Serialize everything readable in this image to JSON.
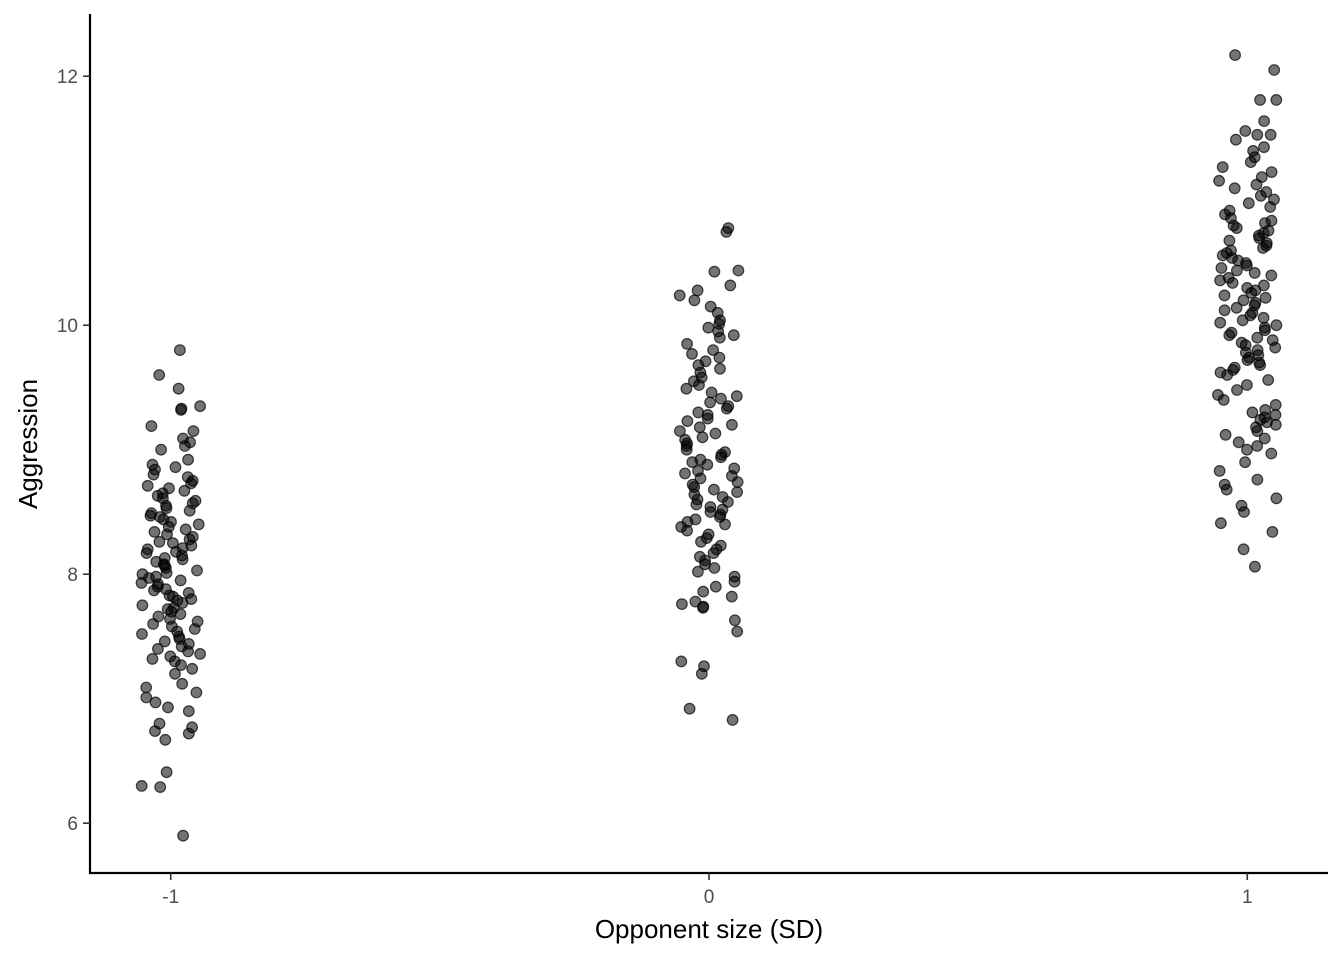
{
  "chart_data": {
    "type": "scatter",
    "title": "",
    "xlabel": "Opponent size (SD)",
    "ylabel": "Aggression",
    "xlim": [
      -1.15,
      1.15
    ],
    "ylim": [
      5.6,
      12.5
    ],
    "x_ticks": [
      -1,
      0,
      1
    ],
    "x_tick_labels": [
      "-1",
      "0",
      "1"
    ],
    "y_ticks": [
      6,
      8,
      10,
      12
    ],
    "y_tick_labels": [
      "6",
      "8",
      "10",
      "12"
    ],
    "grid": false,
    "legend": "none",
    "colors": {
      "point": "#000000",
      "point_opacity": 0.55,
      "axis": "#000000",
      "tick_label": "#4d4d4d"
    },
    "jitter_width": 0.055,
    "groups": [
      {
        "x": -1,
        "values": [
          9.8,
          9.6,
          9.49,
          9.35,
          9.33,
          9.32,
          9.19,
          9.15,
          9.09,
          9.06,
          9.03,
          9.0,
          8.92,
          8.88,
          8.86,
          8.84,
          8.8,
          8.78,
          8.75,
          8.73,
          8.71,
          8.69,
          8.67,
          8.65,
          8.63,
          8.61,
          8.59,
          8.57,
          8.55,
          8.53,
          8.51,
          8.49,
          8.47,
          8.46,
          8.44,
          8.42,
          8.4,
          8.38,
          8.36,
          8.34,
          8.32,
          8.3,
          8.28,
          8.26,
          8.25,
          8.23,
          8.21,
          8.2,
          8.18,
          8.17,
          8.15,
          8.13,
          8.12,
          8.1,
          8.08,
          8.07,
          8.05,
          8.03,
          8.01,
          8.0,
          7.98,
          7.97,
          7.95,
          7.93,
          7.92,
          7.9,
          7.88,
          7.87,
          7.85,
          7.83,
          7.82,
          7.8,
          7.79,
          7.77,
          7.75,
          7.73,
          7.72,
          7.7,
          7.68,
          7.66,
          7.64,
          7.62,
          7.6,
          7.58,
          7.56,
          7.54,
          7.52,
          7.5,
          7.48,
          7.46,
          7.44,
          7.42,
          7.4,
          7.38,
          7.36,
          7.34,
          7.32,
          7.3,
          7.27,
          7.24,
          7.2,
          7.12,
          7.09,
          7.05,
          7.01,
          6.97,
          6.93,
          6.9,
          6.8,
          6.77,
          6.74,
          6.72,
          6.67,
          6.41,
          6.3,
          6.29,
          5.9
        ]
      },
      {
        "x": 0,
        "values": [
          10.78,
          10.75,
          10.44,
          10.43,
          10.32,
          10.28,
          10.24,
          10.2,
          10.15,
          10.1,
          10.04,
          10.01,
          9.98,
          9.95,
          9.92,
          9.9,
          9.85,
          9.8,
          9.77,
          9.74,
          9.71,
          9.68,
          9.65,
          9.62,
          9.58,
          9.55,
          9.52,
          9.49,
          9.46,
          9.43,
          9.41,
          9.38,
          9.35,
          9.33,
          9.3,
          9.28,
          9.25,
          9.23,
          9.2,
          9.18,
          9.15,
          9.13,
          9.1,
          9.08,
          9.05,
          9.03,
          9.0,
          8.98,
          8.96,
          8.94,
          8.92,
          8.9,
          8.88,
          8.85,
          8.83,
          8.81,
          8.79,
          8.77,
          8.74,
          8.72,
          8.7,
          8.68,
          8.66,
          8.64,
          8.62,
          8.6,
          8.58,
          8.56,
          8.54,
          8.52,
          8.5,
          8.48,
          8.46,
          8.44,
          8.42,
          8.4,
          8.38,
          8.35,
          8.32,
          8.29,
          8.26,
          8.23,
          8.2,
          8.17,
          8.14,
          8.11,
          8.08,
          8.05,
          8.02,
          7.98,
          7.94,
          7.9,
          7.86,
          7.82,
          7.78,
          7.76,
          7.74,
          7.73,
          7.63,
          7.54,
          7.3,
          7.26,
          7.2,
          6.92,
          6.83
        ]
      },
      {
        "x": 1,
        "values": [
          12.17,
          12.05,
          11.81,
          11.81,
          11.64,
          11.56,
          11.53,
          11.53,
          11.49,
          11.43,
          11.4,
          11.35,
          11.31,
          11.27,
          11.23,
          11.19,
          11.16,
          11.13,
          11.1,
          11.07,
          11.04,
          11.01,
          10.98,
          10.95,
          10.92,
          10.89,
          10.86,
          10.84,
          10.82,
          10.8,
          10.78,
          10.76,
          10.74,
          10.72,
          10.7,
          10.68,
          10.66,
          10.64,
          10.62,
          10.6,
          10.58,
          10.56,
          10.54,
          10.52,
          10.5,
          10.48,
          10.46,
          10.44,
          10.42,
          10.4,
          10.38,
          10.36,
          10.34,
          10.32,
          10.3,
          10.28,
          10.26,
          10.24,
          10.22,
          10.2,
          10.18,
          10.16,
          10.14,
          10.12,
          10.1,
          10.08,
          10.06,
          10.04,
          10.02,
          10.0,
          9.98,
          9.96,
          9.94,
          9.92,
          9.9,
          9.88,
          9.86,
          9.84,
          9.82,
          9.8,
          9.78,
          9.76,
          9.74,
          9.72,
          9.7,
          9.68,
          9.66,
          9.64,
          9.62,
          9.6,
          9.56,
          9.52,
          9.48,
          9.44,
          9.4,
          9.36,
          9.32,
          9.3,
          9.28,
          9.26,
          9.24,
          9.22,
          9.2,
          9.18,
          9.15,
          9.12,
          9.09,
          9.06,
          9.03,
          9.0,
          8.97,
          8.9,
          8.83,
          8.76,
          8.72,
          8.68,
          8.61,
          8.55,
          8.5,
          8.41,
          8.34,
          8.2,
          8.06
        ]
      }
    ]
  }
}
